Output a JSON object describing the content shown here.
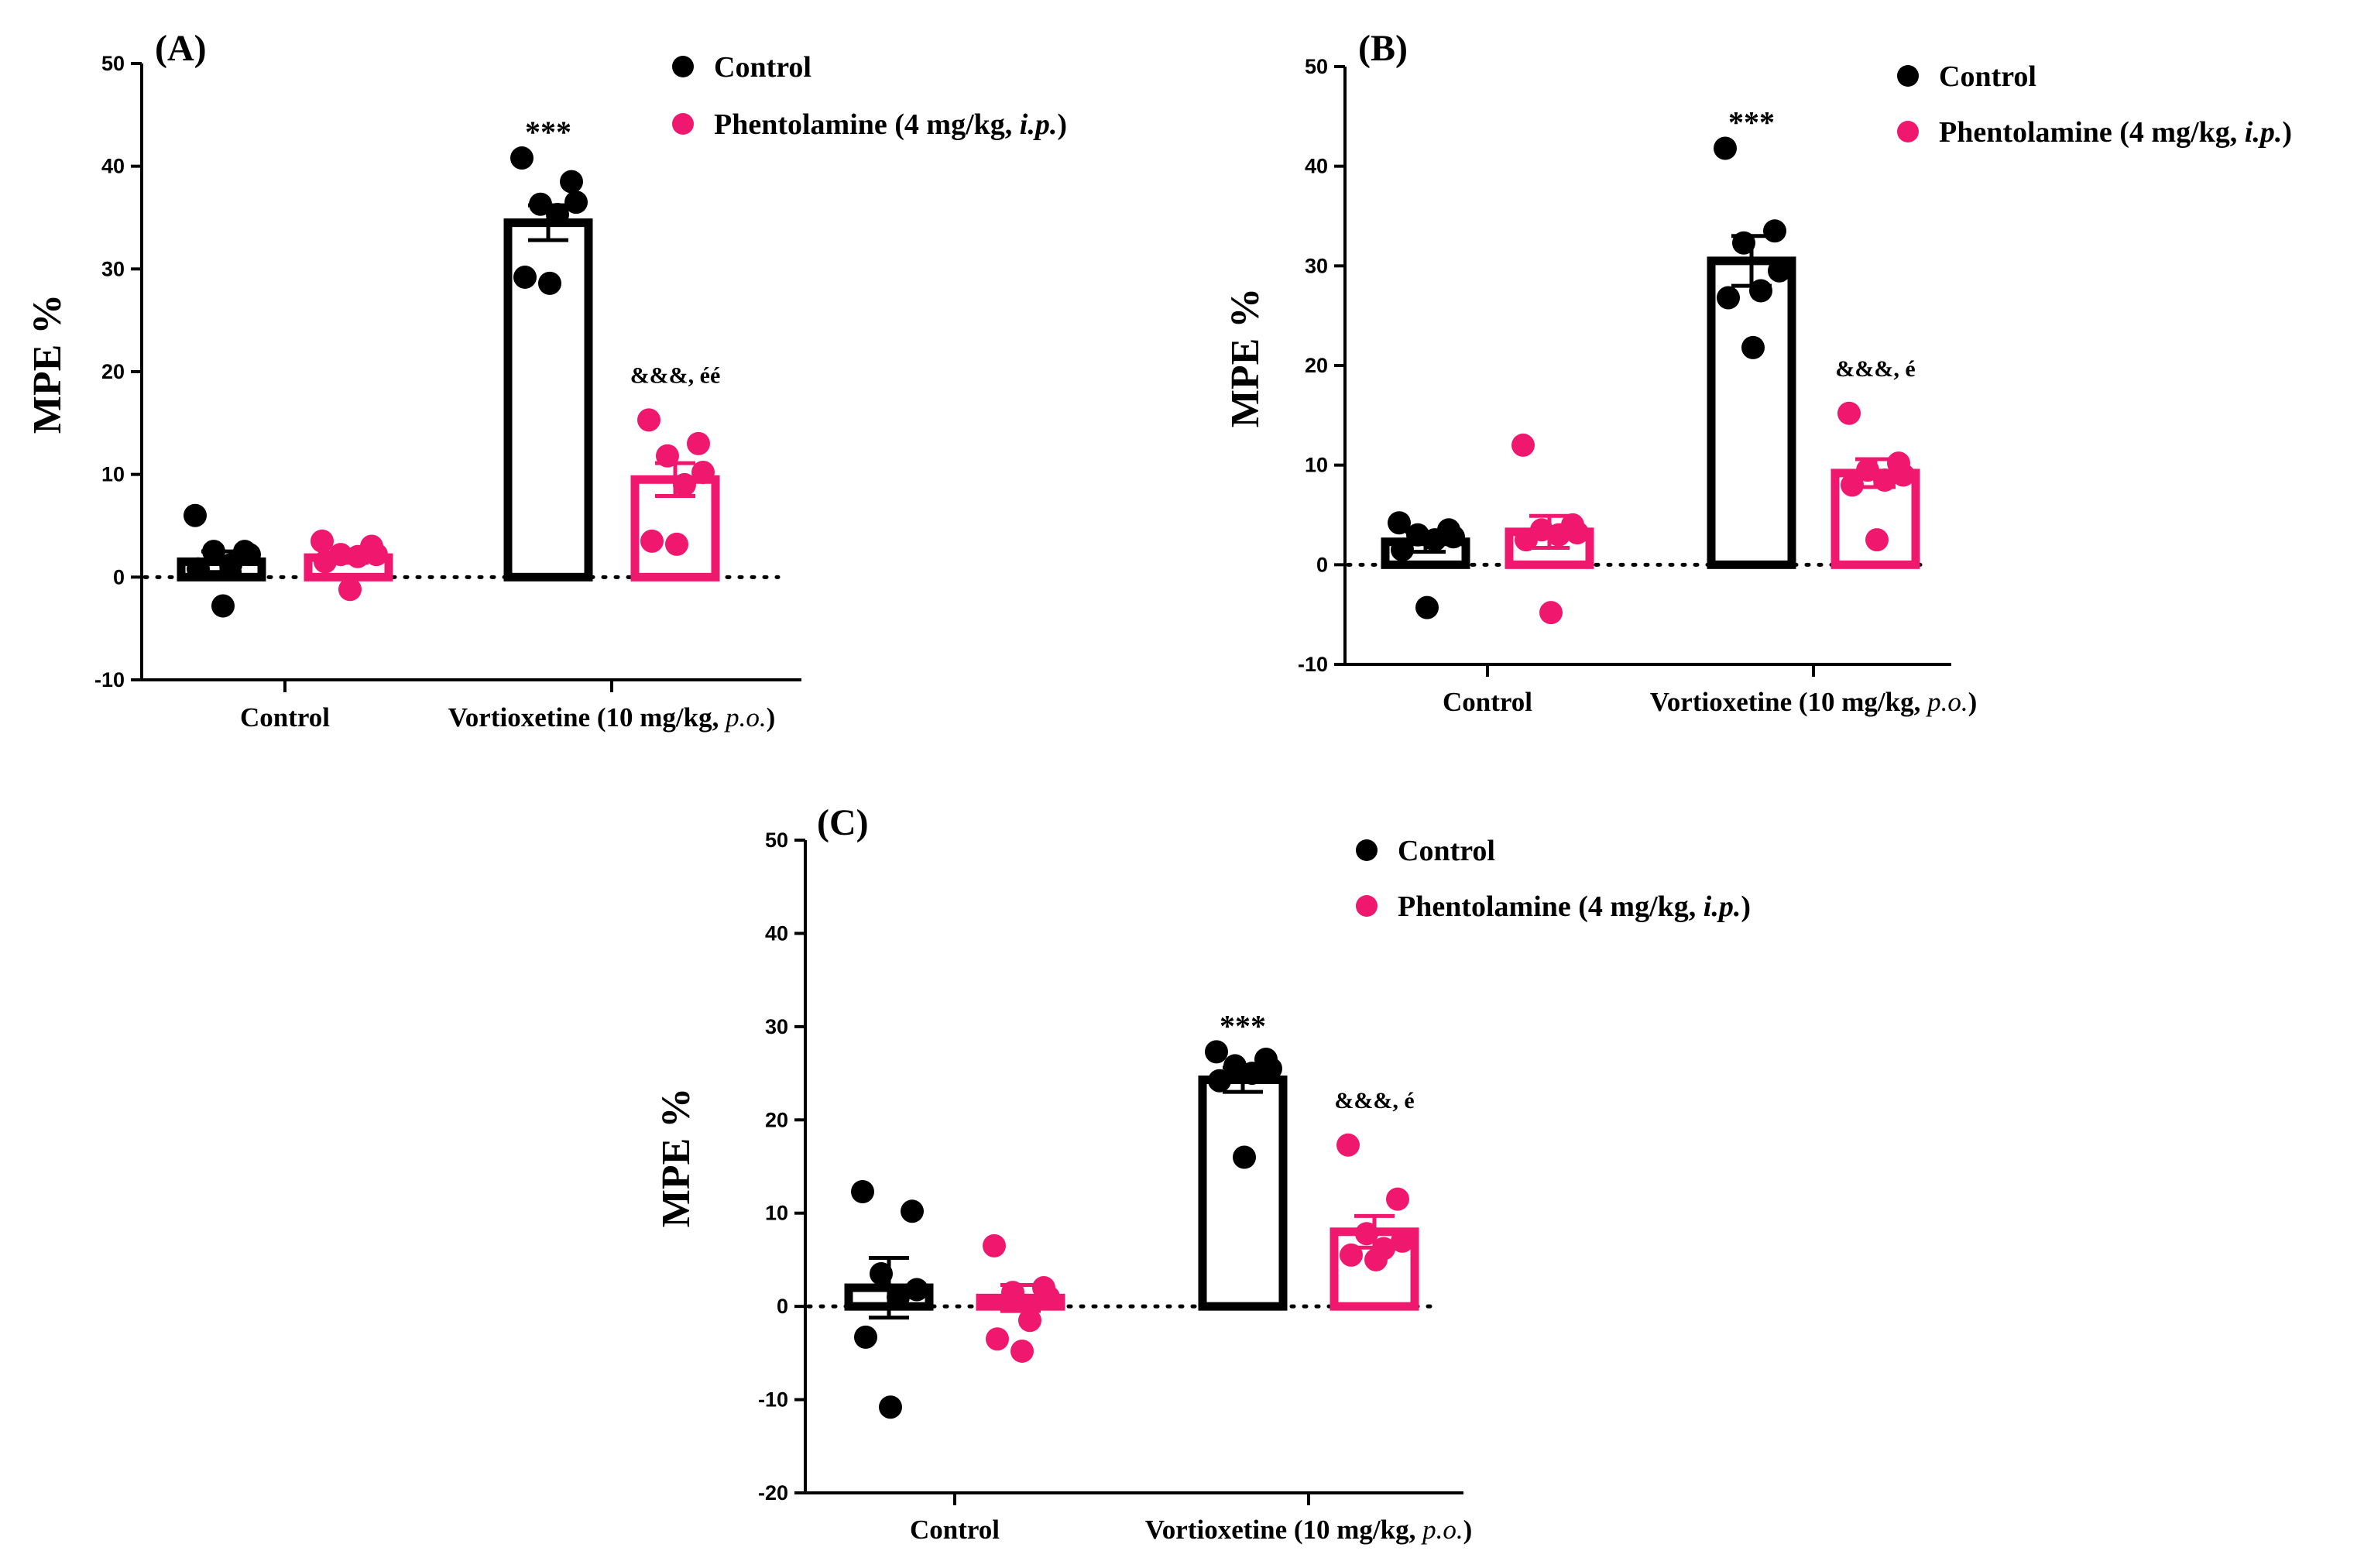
{
  "colors": {
    "control": "#000000",
    "phentolamine": "#f0186e"
  },
  "chart_data": [
    {
      "type": "bar",
      "panel_label": "(A)",
      "ylabel": "MPE %",
      "ylim": [
        -10,
        50
      ],
      "yticks": [
        -10,
        0,
        10,
        20,
        30,
        40,
        50
      ],
      "categories": [
        "Control",
        "Vortioxetine (10 mg/kg, ",
        "p.o.",
        ")"
      ],
      "legend": [
        "Control",
        "Phentolamine (4 mg/kg, ",
        "i.p.",
        ")"
      ],
      "series": [
        {
          "name": "Control",
          "means": [
            1.5,
            34.5
          ],
          "sems": [
            1.0,
            1.7
          ],
          "points": [
            [
              6.0,
              2.5,
              2.5,
              2.2,
              1.2,
              0.8,
              -2.8
            ],
            [
              40.8,
              38.5,
              36.3,
              36.5,
              35.3,
              29.2,
              28.6
            ]
          ]
        },
        {
          "name": "Phentolamine (4 mg/kg, i.p.)",
          "means": [
            1.9,
            9.5
          ],
          "sems": [
            0.5,
            1.6
          ],
          "points": [
            [
              3.5,
              3.0,
              2.2,
              2.2,
              2.0,
              1.5,
              -1.2
            ],
            [
              15.3,
              13.0,
              11.8,
              10.2,
              9.0,
              3.5,
              3.2
            ]
          ]
        }
      ],
      "annotations": [
        {
          "text": "***",
          "category": 1,
          "series": 0
        },
        {
          "text": "&&&, éé",
          "category": 1,
          "series": 1
        }
      ]
    },
    {
      "type": "bar",
      "panel_label": "(B)",
      "ylabel": "MPE %",
      "ylim": [
        -10,
        50
      ],
      "yticks": [
        -10,
        0,
        10,
        20,
        30,
        40,
        50
      ],
      "categories": [
        "Control",
        "Vortioxetine (10 mg/kg, ",
        "p.o.",
        ")"
      ],
      "legend": [
        "Control",
        "Phentolamine (4 mg/kg, ",
        "i.p.",
        ")"
      ],
      "series": [
        {
          "name": "Control",
          "means": [
            2.3,
            30.5
          ],
          "sems": [
            1.0,
            2.5
          ],
          "points": [
            [
              4.2,
              3.5,
              3.0,
              2.8,
              2.5,
              1.5,
              -4.3
            ],
            [
              41.8,
              33.5,
              32.3,
              29.5,
              27.5,
              26.8,
              21.8
            ]
          ]
        },
        {
          "name": "Phentolamine (4 mg/kg, i.p.)",
          "means": [
            3.3,
            9.2
          ],
          "sems": [
            1.6,
            1.4
          ],
          "points": [
            [
              12.0,
              4.0,
              3.5,
              3.2,
              3.0,
              2.5,
              -4.8
            ],
            [
              15.2,
              10.2,
              9.5,
              9.0,
              8.5,
              8.0,
              2.5
            ]
          ]
        }
      ],
      "annotations": [
        {
          "text": "***",
          "category": 1,
          "series": 0
        },
        {
          "text": "&&&, é",
          "category": 1,
          "series": 1
        }
      ]
    },
    {
      "type": "bar",
      "panel_label": "(C)",
      "ylabel": "MPE %",
      "ylim": [
        -20,
        50
      ],
      "yticks": [
        -20,
        -10,
        0,
        10,
        20,
        30,
        40,
        50
      ],
      "categories": [
        "Control",
        "Vortioxetine (10 mg/kg, ",
        "p.o.",
        ")"
      ],
      "legend": [
        "Control",
        "Phentolamine (4 mg/kg, ",
        "i.p.",
        ")"
      ],
      "series": [
        {
          "name": "Control",
          "means": [
            2.0,
            24.3
          ],
          "sems": [
            3.2,
            1.3
          ],
          "points": [
            [
              12.3,
              10.2,
              3.5,
              1.8,
              1.0,
              -3.3,
              -10.8
            ],
            [
              27.3,
              26.5,
              25.8,
              25.5,
              25.0,
              24.2,
              16.0
            ]
          ]
        },
        {
          "name": "Phentolamine (4 mg/kg, i.p.)",
          "means": [
            0.9,
            8.0
          ],
          "sems": [
            1.4,
            1.7
          ],
          "points": [
            [
              6.5,
              2.0,
              1.5,
              1.0,
              -1.5,
              -3.5,
              -4.8
            ],
            [
              17.3,
              11.5,
              7.8,
              7.0,
              6.2,
              5.5,
              5.0
            ]
          ]
        }
      ],
      "annotations": [
        {
          "text": "***",
          "category": 1,
          "series": 0
        },
        {
          "text": "&&&, é",
          "category": 1,
          "series": 1
        }
      ]
    }
  ]
}
